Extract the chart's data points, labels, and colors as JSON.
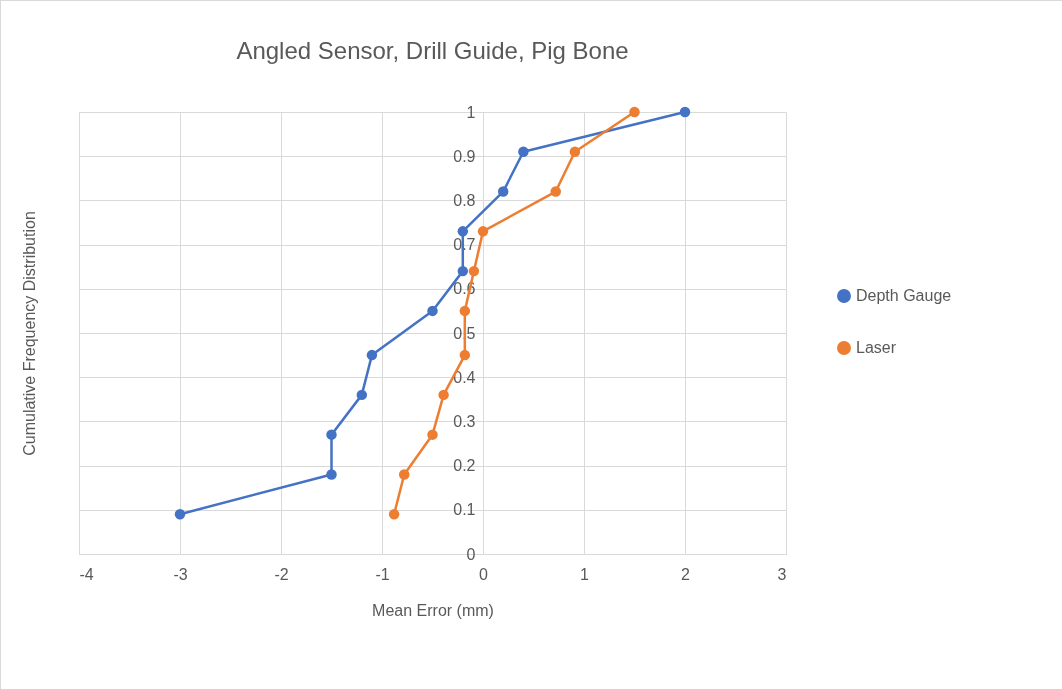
{
  "chart_data": {
    "type": "line",
    "title": "Angled Sensor, Drill Guide, Pig Bone",
    "xlabel": "Mean Error (mm)",
    "ylabel": "Cumulative Frequency Distribution",
    "series": [
      {
        "name": "Depth Gauge",
        "color": "#4472c4",
        "x": [
          -3,
          -1.5,
          -1.5,
          -1.2,
          -1.1,
          -0.5,
          -0.2,
          -0.2,
          0.2,
          0.4,
          2
        ],
        "values": [
          0.09,
          0.18,
          0.27,
          0.36,
          0.45,
          0.55,
          0.64,
          0.73,
          0.82,
          0.91,
          1
        ]
      },
      {
        "name": "Laser",
        "color": "#ed7d31",
        "x": [
          -0.88,
          -0.78,
          -0.5,
          -0.39,
          -0.18,
          -0.18,
          -0.09,
          0,
          0.72,
          0.91,
          1.5
        ],
        "values": [
          0.09,
          0.18,
          0.27,
          0.36,
          0.45,
          0.55,
          0.64,
          0.73,
          0.82,
          0.91,
          1
        ]
      }
    ],
    "xlim": [
      -4,
      3
    ],
    "xticks": [
      -4,
      -3,
      -2,
      -1,
      0,
      1,
      2,
      3
    ],
    "ylim": [
      0,
      1
    ],
    "yticks": [
      0,
      0.1,
      0.2,
      0.3,
      0.4,
      0.5,
      0.6,
      0.7,
      0.8,
      0.9,
      1
    ],
    "grid": true,
    "legend": "right",
    "marker": "circle",
    "line_style": "solid"
  }
}
